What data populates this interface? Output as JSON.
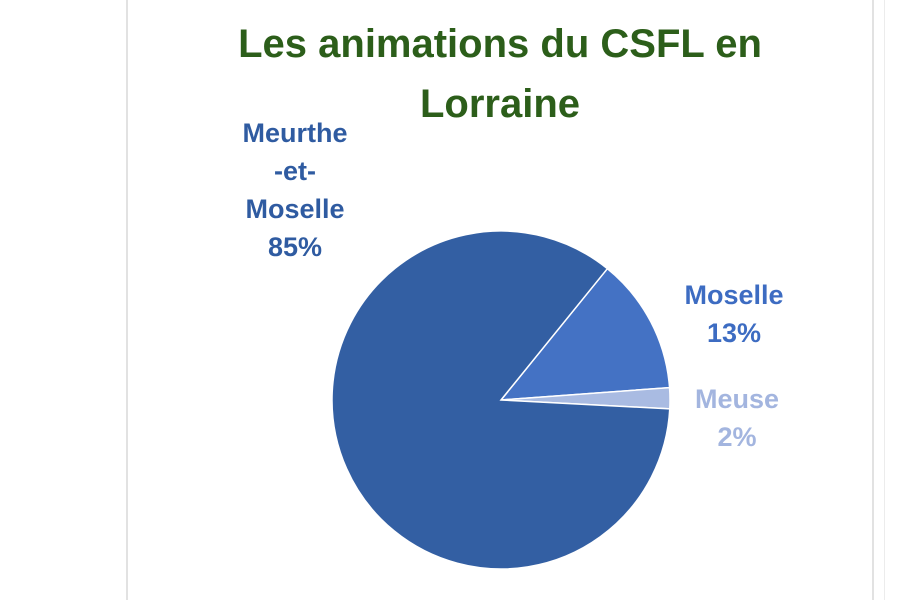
{
  "chart_data": {
    "type": "pie",
    "title_lines": [
      "Les animations du CSFL en",
      "Lorraine"
    ],
    "slices": [
      {
        "name": "Moselle",
        "label_lines": [
          "Moselle",
          "13%"
        ],
        "value": 13,
        "color": "#4472c4",
        "label_color": "#3d6cc2"
      },
      {
        "name": "Meuse",
        "label_lines": [
          "Meuse",
          "2%"
        ],
        "value": 2,
        "color": "#a9bbe2",
        "label_color": "#a3b5df"
      },
      {
        "name": "Meurthe-et-Moselle",
        "label_lines": [
          "Meurthe",
          "-et-",
          "Moselle",
          "85%"
        ],
        "value": 85,
        "color": "#335fa3",
        "label_color": "#2f5ba1"
      }
    ]
  }
}
